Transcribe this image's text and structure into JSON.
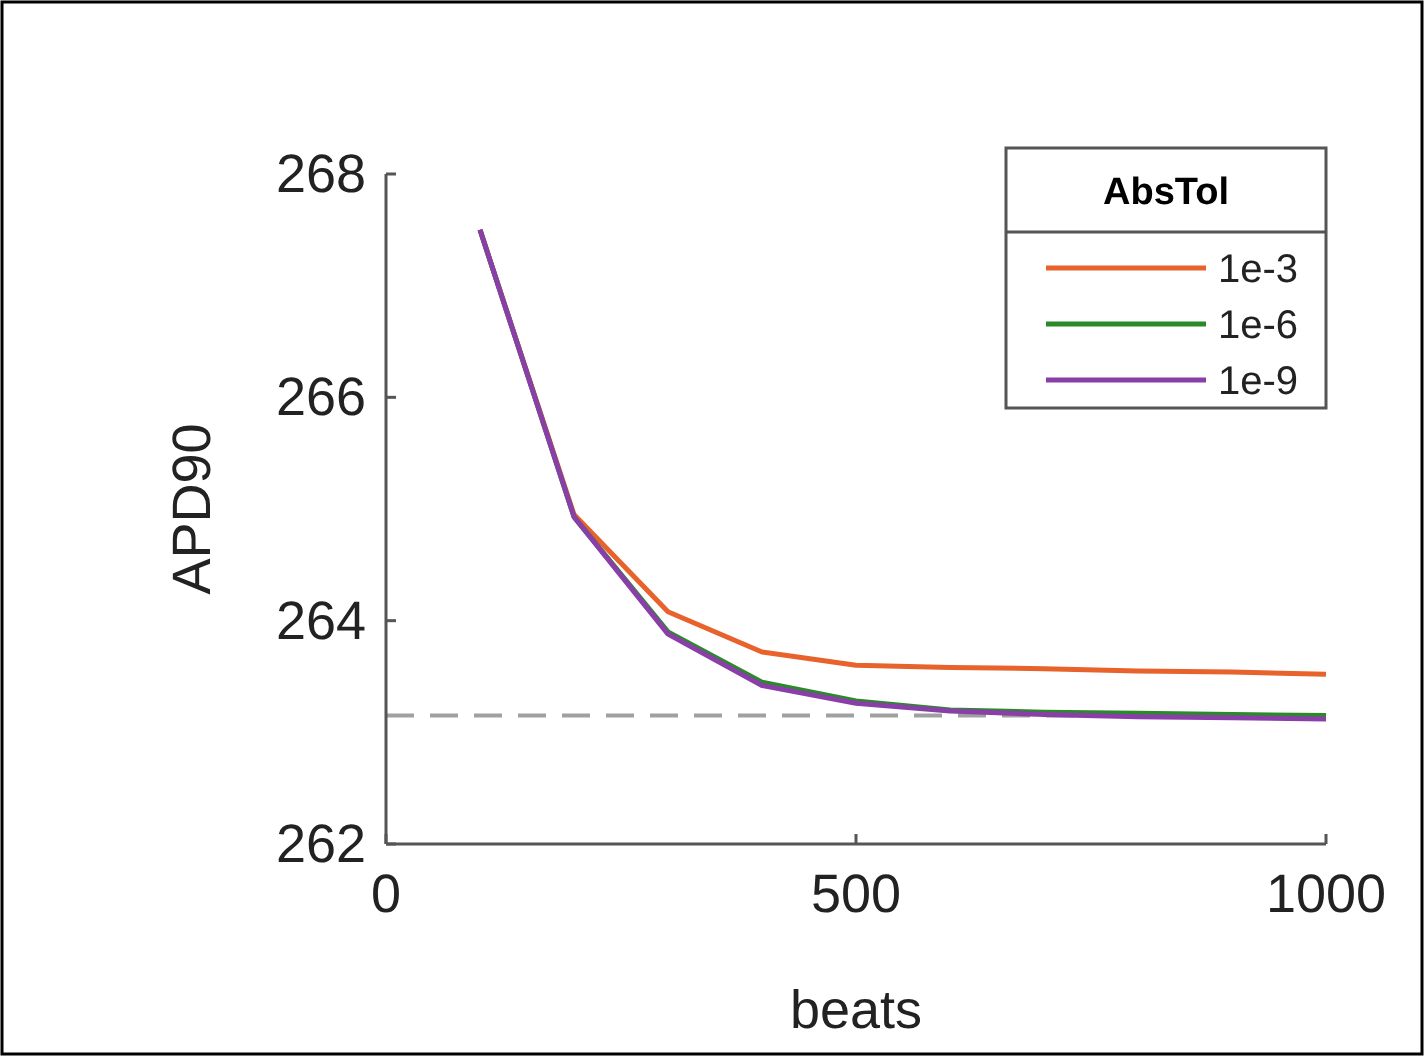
{
  "chart_data": {
    "type": "line",
    "xlabel": "beats",
    "ylabel": "APD90",
    "legend_title": "AbsTol",
    "legend": "top right",
    "grid": false,
    "line_style": "solid",
    "marker": "none",
    "x": [
      100,
      200,
      300,
      400,
      500,
      600,
      700,
      800,
      900,
      1000
    ],
    "xlim": [
      0,
      1000
    ],
    "xticks": [
      0,
      500,
      1000
    ],
    "ylim": [
      262,
      268
    ],
    "yticks": [
      262,
      264,
      266,
      268
    ],
    "series": [
      {
        "name": "1e-3",
        "color": "#e8622c",
        "values": [
          267.5,
          264.95,
          264.08,
          263.72,
          263.6,
          263.58,
          263.57,
          263.55,
          263.54,
          263.52
        ]
      },
      {
        "name": "1e-6",
        "color": "#2a8a2a",
        "values": [
          267.5,
          264.93,
          263.9,
          263.45,
          263.28,
          263.2,
          263.18,
          263.17,
          263.16,
          263.15
        ]
      },
      {
        "name": "1e-9",
        "color": "#8a3fa8",
        "values": [
          267.5,
          264.93,
          263.88,
          263.42,
          263.26,
          263.19,
          263.16,
          263.14,
          263.13,
          263.12
        ]
      }
    ],
    "ref_lines": [
      {
        "axis": "y",
        "value": 263.15,
        "color": "#a0a0a0",
        "line_style": "dashed"
      }
    ]
  }
}
